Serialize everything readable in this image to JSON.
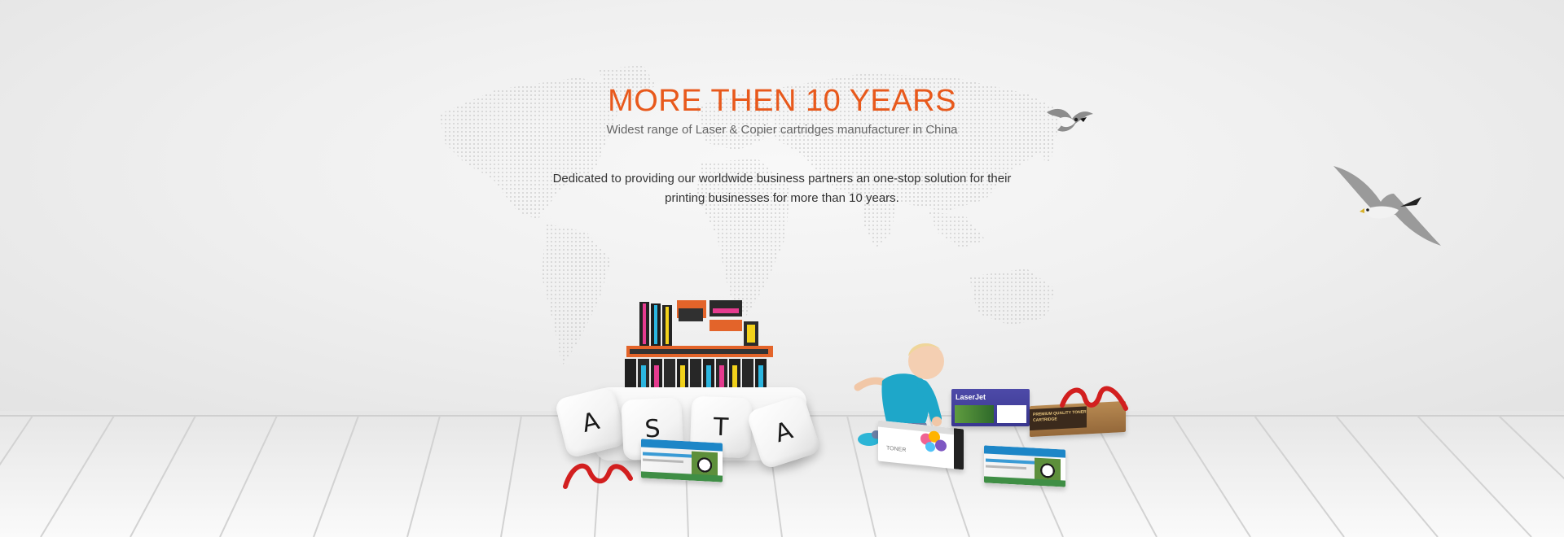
{
  "hero": {
    "headline": "MORE THEN 10 YEARS",
    "subheadline": "Widest range of Laser & Copier cartridges manufacturer in China",
    "description": "Dedicated to providing our worldwide business partners an one-stop solution for their printing businesses for more than 10 years."
  },
  "keycaps": [
    "A",
    "S",
    "T",
    "A"
  ],
  "product_boxes": {
    "laserjet_label": "LaserJet",
    "toner_label": "TONER",
    "premium_label": "PREMIUM QUALITY TONER CARTRIDGE"
  },
  "colors": {
    "headline": "#e8591c",
    "subheadline": "#666666",
    "body_text": "#333333",
    "ribbon": "#d21f1f"
  }
}
